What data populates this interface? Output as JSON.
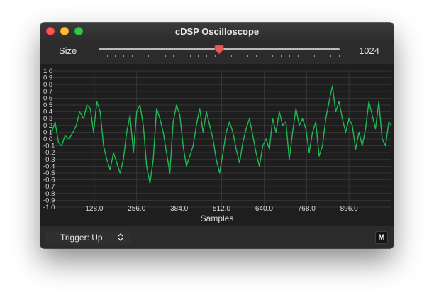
{
  "window": {
    "title": "cDSP Oscilloscope"
  },
  "toolbar": {
    "size_label": "Size",
    "size_value": "1024",
    "slider_fraction": 0.5,
    "slider_tick_count": 30
  },
  "footer": {
    "trigger_label": "Trigger: Up",
    "mode_button_label": "M"
  },
  "colors": {
    "trace": "#21b755",
    "slider_thumb": "#ec5a55",
    "grid": "#3c3c3c",
    "axis_text": "#d8d8d8"
  },
  "chart_data": {
    "type": "line",
    "xlabel": "Samples",
    "xlim": [
      0,
      1024
    ],
    "ylim": [
      -1.0,
      1.0
    ],
    "x_ticks": [
      128.0,
      256.0,
      384.0,
      512.0,
      640.0,
      768.0,
      896.0
    ],
    "x_tick_labels": [
      "128.0",
      "256.0",
      "384.0",
      "512.0",
      "640.0",
      "768.0",
      "896.0"
    ],
    "y_ticks": [
      1.0,
      0.9,
      0.8,
      0.7,
      0.6,
      0.5,
      0.4,
      0.3,
      0.2,
      0.1,
      0.0,
      -0.1,
      -0.2,
      -0.3,
      -0.4,
      -0.5,
      -0.6,
      -0.7,
      -0.8,
      -0.9,
      -1.0
    ],
    "y_tick_labels": [
      "1.0",
      "0.9",
      "0.8",
      "0.7",
      "0.6",
      "0.5",
      "0.4",
      "0.3",
      "0.2",
      "0.1",
      "0.0",
      "-0.1",
      "-0.2",
      "-0.3",
      "-0.4",
      "-0.5",
      "-0.6",
      "-0.7",
      "-0.8",
      "-0.9",
      "-1.0"
    ],
    "grid": true,
    "series": [
      {
        "x": [
          0,
          10,
          20,
          30,
          40,
          52,
          64,
          74,
          84,
          96,
          106,
          116,
          126,
          136,
          146,
          156,
          166,
          176,
          186,
          196,
          206,
          216,
          226,
          236,
          246,
          256,
          266,
          276,
          286,
          296,
          306,
          316,
          326,
          336,
          346,
          356,
          366,
          376,
          386,
          396,
          406,
          416,
          426,
          436,
          446,
          456,
          466,
          476,
          486,
          496,
          506,
          516,
          526,
          536,
          546,
          556,
          566,
          576,
          586,
          596,
          606,
          616,
          626,
          636,
          646,
          656,
          666,
          676,
          686,
          696,
          706,
          716,
          726,
          736,
          746,
          756,
          766,
          776,
          786,
          796,
          806,
          816,
          826,
          836,
          846,
          856,
          866,
          876,
          886,
          896,
          906,
          916,
          926,
          936,
          946,
          956,
          966,
          976,
          986,
          996,
          1006,
          1016,
          1024
        ],
        "y": [
          0.1,
          0.25,
          -0.05,
          -0.1,
          0.05,
          0.0,
          0.1,
          0.2,
          0.4,
          0.3,
          0.5,
          0.45,
          0.1,
          0.55,
          0.4,
          -0.1,
          -0.3,
          -0.45,
          -0.2,
          -0.35,
          -0.5,
          -0.3,
          0.1,
          0.35,
          -0.2,
          0.4,
          0.5,
          0.2,
          -0.4,
          -0.65,
          -0.3,
          0.45,
          0.3,
          0.1,
          -0.2,
          -0.5,
          0.25,
          0.5,
          0.35,
          -0.1,
          -0.4,
          -0.25,
          -0.1,
          0.2,
          0.45,
          0.1,
          0.4,
          0.2,
          0.0,
          -0.3,
          -0.5,
          -0.2,
          0.1,
          0.25,
          0.1,
          -0.15,
          -0.35,
          -0.05,
          0.15,
          0.3,
          0.05,
          -0.2,
          -0.4,
          -0.1,
          0.0,
          -0.15,
          0.3,
          0.1,
          0.4,
          0.2,
          0.25,
          -0.3,
          0.1,
          0.45,
          0.2,
          0.3,
          0.15,
          -0.2,
          0.1,
          0.25,
          -0.25,
          -0.1,
          0.3,
          0.55,
          0.78,
          0.4,
          0.55,
          0.3,
          0.1,
          0.3,
          0.2,
          -0.15,
          0.1,
          -0.1,
          0.15,
          0.55,
          0.35,
          0.15,
          0.55,
          0.0,
          -0.1,
          0.25,
          0.2
        ]
      }
    ]
  }
}
